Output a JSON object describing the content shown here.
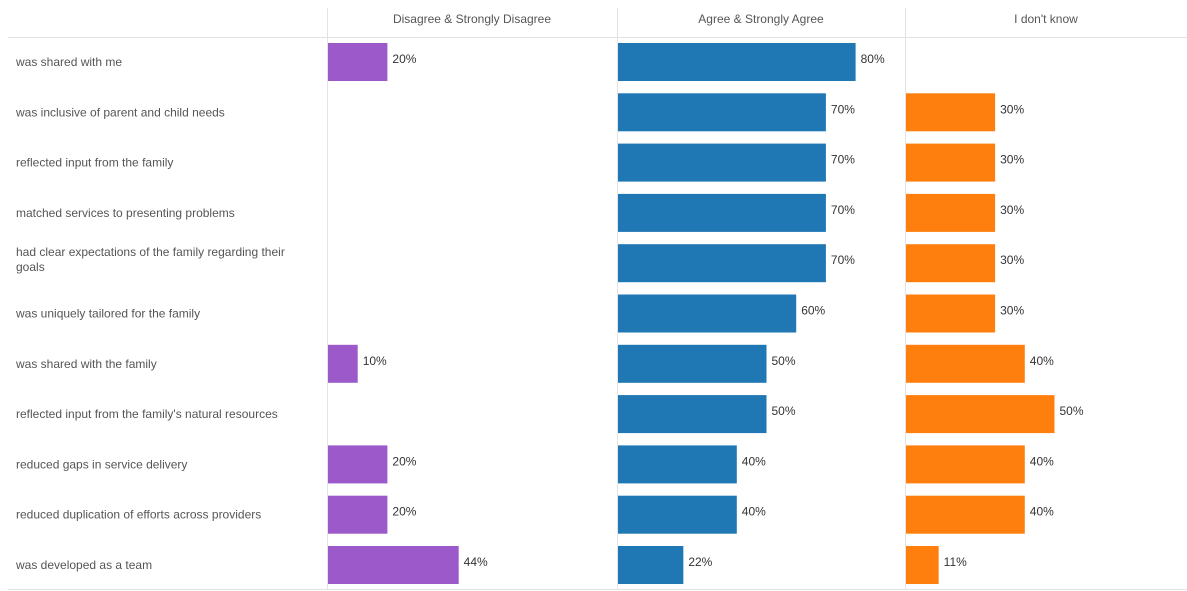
{
  "chart_data": {
    "type": "bar",
    "orientation": "horizontal",
    "grid": false,
    "series": [
      {
        "name": "Disagree & Strongly Disagree",
        "color": "#9b59c9",
        "values": [
          20,
          null,
          null,
          null,
          null,
          null,
          10,
          null,
          20,
          20,
          44
        ],
        "labels": [
          "20%",
          "",
          "",
          "",
          "",
          "",
          "10%",
          "",
          "20%",
          "20%",
          "44%"
        ]
      },
      {
        "name": "Agree & Strongly Agree",
        "color": "#1f77b4",
        "values": [
          80,
          70,
          70,
          70,
          70,
          60,
          50,
          50,
          40,
          40,
          22
        ],
        "labels": [
          "80%",
          "70%",
          "70%",
          "70%",
          "70%",
          "60%",
          "50%",
          "50%",
          "40%",
          "40%",
          "22%"
        ]
      },
      {
        "name": "I don't know",
        "color": "#ff7f0e",
        "values": [
          null,
          30,
          30,
          30,
          30,
          30,
          40,
          50,
          40,
          40,
          11
        ],
        "labels": [
          "",
          "30%",
          "30%",
          "30%",
          "30%",
          "30%",
          "40%",
          "50%",
          "40%",
          "40%",
          "11%"
        ]
      }
    ],
    "categories": [
      [
        "was shared with me"
      ],
      [
        "was inclusive of parent and child needs"
      ],
      [
        "reflected input from the family"
      ],
      [
        "matched services to presenting problems"
      ],
      [
        "had clear expectations of the family regarding their",
        "goals"
      ],
      [
        "was uniquely tailored for the family"
      ],
      [
        "was shared with the family"
      ],
      [
        "reflected input from the family's natural resources"
      ],
      [
        "reduced gaps in service delivery"
      ],
      [
        "reduced duplication of efforts across providers"
      ],
      [
        "was developed as a team"
      ]
    ]
  },
  "colors": {
    "divider": "#e3e3e3",
    "header_text": "#555555",
    "label_text": "#555555"
  }
}
